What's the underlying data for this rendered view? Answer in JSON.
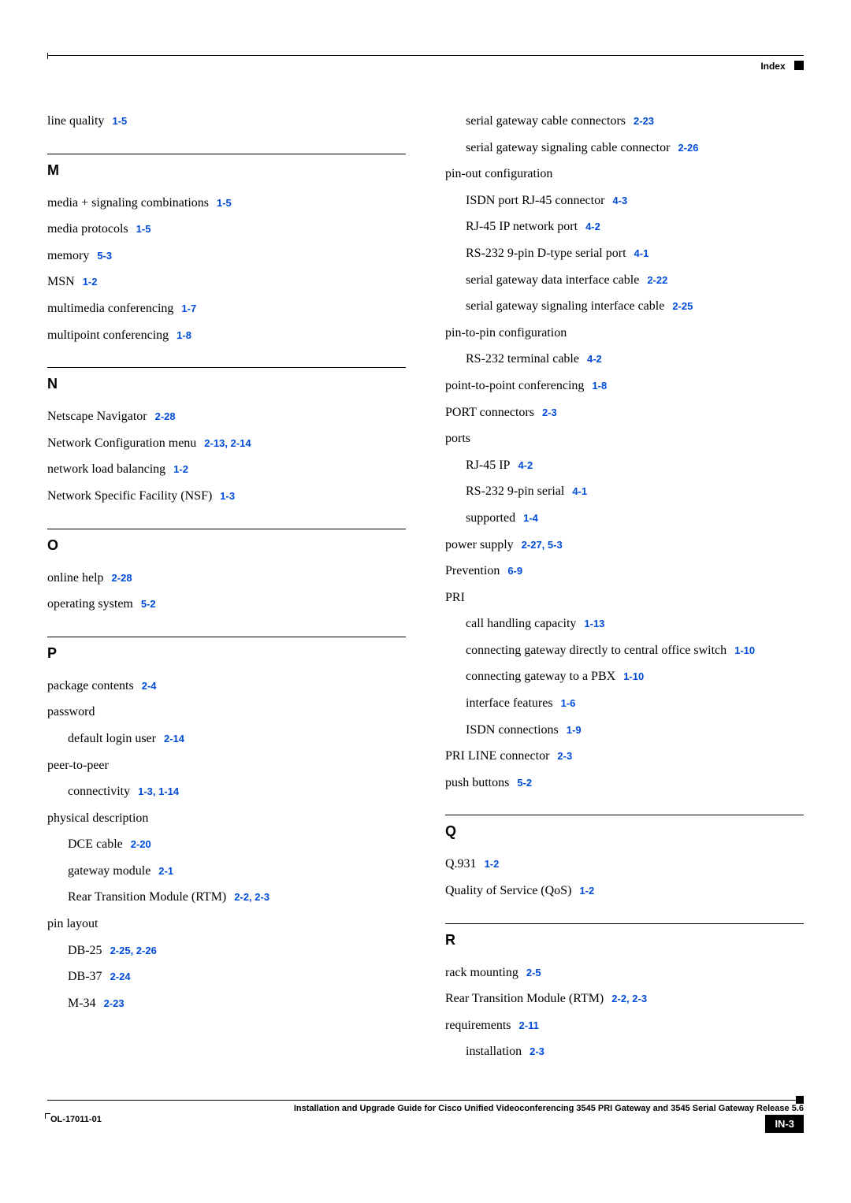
{
  "header": {
    "label": "Index"
  },
  "left_col": [
    {
      "type": "entry",
      "text": "line quality",
      "refs": [
        "1-5"
      ]
    },
    {
      "type": "section",
      "letter": "M"
    },
    {
      "type": "entry",
      "text": "media + signaling combinations",
      "refs": [
        "1-5"
      ]
    },
    {
      "type": "entry",
      "text": "media protocols",
      "refs": [
        "1-5"
      ]
    },
    {
      "type": "entry",
      "text": "memory",
      "refs": [
        "5-3"
      ]
    },
    {
      "type": "entry",
      "text": "MSN",
      "refs": [
        "1-2"
      ]
    },
    {
      "type": "entry",
      "text": "multimedia conferencing",
      "refs": [
        "1-7"
      ]
    },
    {
      "type": "entry",
      "text": "multipoint conferencing",
      "refs": [
        "1-8"
      ]
    },
    {
      "type": "section",
      "letter": "N"
    },
    {
      "type": "entry",
      "text": "Netscape Navigator",
      "refs": [
        "2-28"
      ]
    },
    {
      "type": "entry",
      "text": "Network Configuration menu",
      "refs": [
        "2-13, 2-14"
      ]
    },
    {
      "type": "entry",
      "text": "network load balancing",
      "refs": [
        "1-2"
      ]
    },
    {
      "type": "entry",
      "text": "Network Specific Facility (NSF)",
      "refs": [
        "1-3"
      ]
    },
    {
      "type": "section",
      "letter": "O"
    },
    {
      "type": "entry",
      "text": "online help",
      "refs": [
        "2-28"
      ]
    },
    {
      "type": "entry",
      "text": "operating system",
      "refs": [
        "5-2"
      ]
    },
    {
      "type": "section",
      "letter": "P"
    },
    {
      "type": "entry",
      "text": "package contents",
      "refs": [
        "2-4"
      ]
    },
    {
      "type": "entry",
      "text": "password",
      "refs": []
    },
    {
      "type": "entry",
      "text": "default login user",
      "refs": [
        "2-14"
      ],
      "indent": 1
    },
    {
      "type": "entry",
      "text": "peer-to-peer",
      "refs": []
    },
    {
      "type": "entry",
      "text": "connectivity",
      "refs": [
        "1-3, 1-14"
      ],
      "indent": 1
    },
    {
      "type": "entry",
      "text": "physical description",
      "refs": []
    },
    {
      "type": "entry",
      "text": "DCE cable",
      "refs": [
        "2-20"
      ],
      "indent": 1
    },
    {
      "type": "entry",
      "text": "gateway module",
      "refs": [
        "2-1"
      ],
      "indent": 1
    },
    {
      "type": "entry",
      "text": "Rear Transition Module (RTM)",
      "refs": [
        "2-2, 2-3"
      ],
      "indent": 1
    },
    {
      "type": "entry",
      "text": "pin layout",
      "refs": []
    },
    {
      "type": "entry",
      "text": "DB-25",
      "refs": [
        "2-25, 2-26"
      ],
      "indent": 1
    },
    {
      "type": "entry",
      "text": "DB-37",
      "refs": [
        "2-24"
      ],
      "indent": 1
    },
    {
      "type": "entry",
      "text": "M-34",
      "refs": [
        "2-23"
      ],
      "indent": 1
    }
  ],
  "right_col": [
    {
      "type": "entry",
      "text": "serial gateway cable connectors",
      "refs": [
        "2-23"
      ],
      "indent": 1
    },
    {
      "type": "entry",
      "text": "serial gateway signaling cable connector",
      "refs": [
        "2-26"
      ],
      "indent": 1
    },
    {
      "type": "entry",
      "text": "pin-out configuration",
      "refs": []
    },
    {
      "type": "entry",
      "text": "ISDN port RJ-45 connector",
      "refs": [
        "4-3"
      ],
      "indent": 1
    },
    {
      "type": "entry",
      "text": "RJ-45 IP network port",
      "refs": [
        "4-2"
      ],
      "indent": 1
    },
    {
      "type": "entry",
      "text": "RS-232 9-pin D-type serial port",
      "refs": [
        "4-1"
      ],
      "indent": 1
    },
    {
      "type": "entry",
      "text": "serial gateway data interface cable",
      "refs": [
        "2-22"
      ],
      "indent": 1
    },
    {
      "type": "entry",
      "text": "serial gateway signaling interface cable",
      "refs": [
        "2-25"
      ],
      "indent": 1
    },
    {
      "type": "entry",
      "text": "pin-to-pin configuration",
      "refs": []
    },
    {
      "type": "entry",
      "text": "RS-232 terminal cable",
      "refs": [
        "4-2"
      ],
      "indent": 1
    },
    {
      "type": "entry",
      "text": "point-to-point conferencing",
      "refs": [
        "1-8"
      ]
    },
    {
      "type": "entry",
      "text": "PORT connectors",
      "refs": [
        "2-3"
      ]
    },
    {
      "type": "entry",
      "text": "ports",
      "refs": []
    },
    {
      "type": "entry",
      "text": "RJ-45 IP",
      "refs": [
        "4-2"
      ],
      "indent": 1
    },
    {
      "type": "entry",
      "text": "RS-232 9-pin serial",
      "refs": [
        "4-1"
      ],
      "indent": 1
    },
    {
      "type": "entry",
      "text": "supported",
      "refs": [
        "1-4"
      ],
      "indent": 1
    },
    {
      "type": "entry",
      "text": "power supply",
      "refs": [
        "2-27, 5-3"
      ]
    },
    {
      "type": "entry",
      "text": "Prevention",
      "refs": [
        "6-9"
      ]
    },
    {
      "type": "entry",
      "text": "PRI",
      "refs": []
    },
    {
      "type": "entry",
      "text": "call handling capacity",
      "refs": [
        "1-13"
      ],
      "indent": 1
    },
    {
      "type": "entry",
      "text": "connecting gateway directly to central office switch",
      "refs": [
        "1-10"
      ],
      "indent": 1
    },
    {
      "type": "entry",
      "text": "connecting gateway to a PBX",
      "refs": [
        "1-10"
      ],
      "indent": 1
    },
    {
      "type": "entry",
      "text": "interface features",
      "refs": [
        "1-6"
      ],
      "indent": 1
    },
    {
      "type": "entry",
      "text": "ISDN connections",
      "refs": [
        "1-9"
      ],
      "indent": 1
    },
    {
      "type": "entry",
      "text": "PRI LINE connector",
      "refs": [
        "2-3"
      ]
    },
    {
      "type": "entry",
      "text": "push buttons",
      "refs": [
        "5-2"
      ]
    },
    {
      "type": "section",
      "letter": "Q"
    },
    {
      "type": "entry",
      "text": "Q.931",
      "refs": [
        "1-2"
      ]
    },
    {
      "type": "entry",
      "text": "Quality of Service (QoS)",
      "refs": [
        "1-2"
      ]
    },
    {
      "type": "section",
      "letter": "R"
    },
    {
      "type": "entry",
      "text": "rack mounting",
      "refs": [
        "2-5"
      ]
    },
    {
      "type": "entry",
      "text": "Rear Transition Module (RTM)",
      "refs": [
        "2-2, 2-3"
      ]
    },
    {
      "type": "entry",
      "text": "requirements",
      "refs": [
        "2-11"
      ]
    },
    {
      "type": "entry",
      "text": "installation",
      "refs": [
        "2-3"
      ],
      "indent": 1
    }
  ],
  "footer": {
    "title": "Installation and Upgrade Guide for Cisco Unified Videoconferencing 3545 PRI Gateway and 3545 Serial Gateway Release 5.6",
    "doc_id": "OL-17011-01",
    "page": "IN-3"
  }
}
